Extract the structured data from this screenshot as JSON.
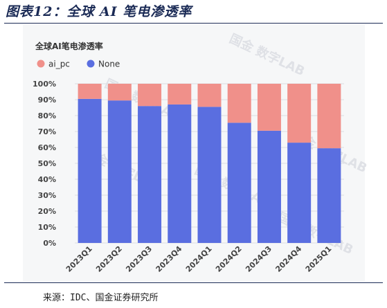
{
  "figure_title": "图表12：全球 AI 笔电渗透率",
  "source": "来源：IDC、国金证券研究所",
  "watermark": "国金 数字LAB",
  "colors": {
    "ai_pc": "#f0908a",
    "None": "#5a6ee0"
  },
  "chart_data": {
    "type": "bar",
    "stacked": true,
    "title": "全球AI笔电渗透率",
    "categories": [
      "2023Q1",
      "2023Q2",
      "2023Q3",
      "2023Q4",
      "2024Q1",
      "2024Q2",
      "2024Q3",
      "2024Q4",
      "2025Q1"
    ],
    "series": [
      {
        "name": "None",
        "values": [
          90.5,
          89.5,
          86,
          87,
          85.5,
          75.5,
          70.5,
          63,
          59.5
        ]
      },
      {
        "name": "ai_pc",
        "values": [
          9.5,
          10.5,
          14,
          13,
          14.5,
          24.5,
          29.5,
          37,
          40.5
        ]
      }
    ],
    "legend_order": [
      "ai_pc",
      "None"
    ],
    "ylim": [
      0,
      100
    ],
    "yticks": [
      "0%",
      "10%",
      "20%",
      "30%",
      "40%",
      "50%",
      "60%",
      "70%",
      "80%",
      "90%",
      "100%"
    ],
    "grid": true,
    "legend_position": "top-left"
  }
}
